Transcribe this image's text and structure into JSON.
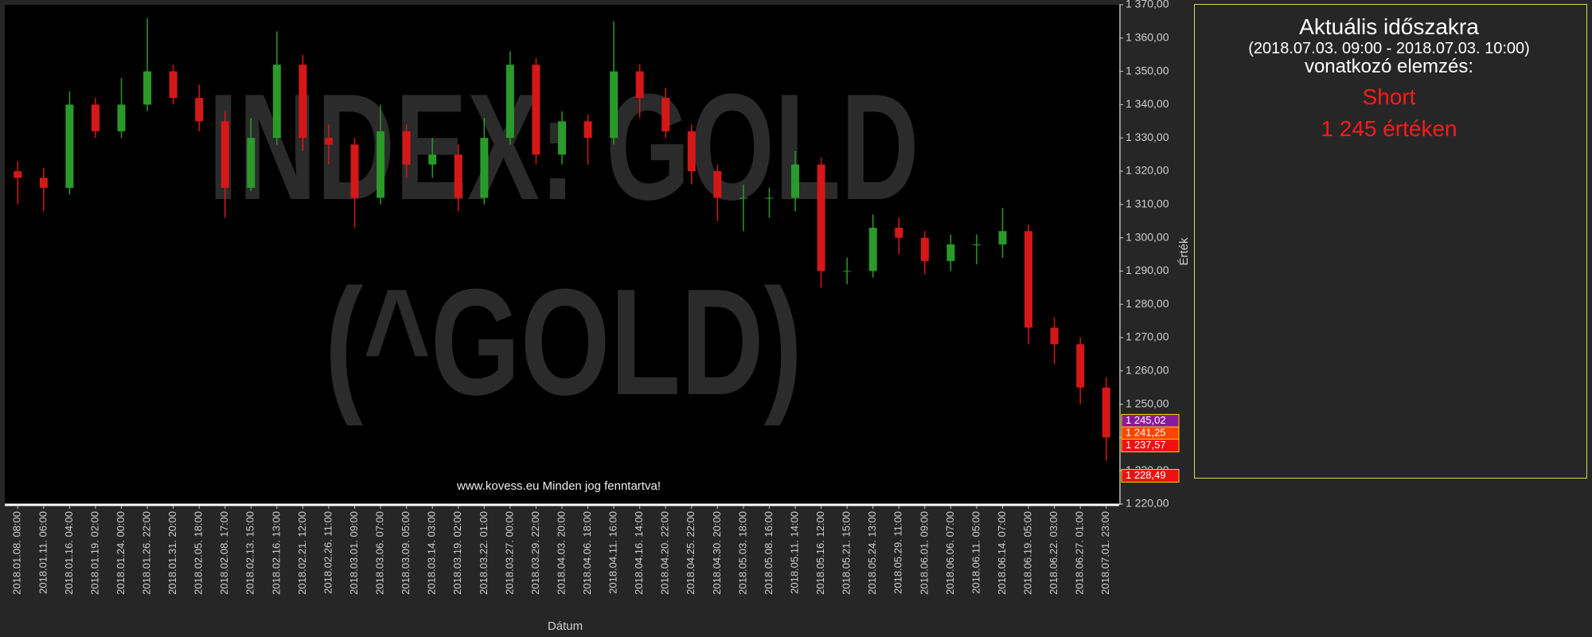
{
  "chart_data": {
    "type": "candlestick",
    "watermark": [
      "INDEX: GOLD",
      "(^GOLD)"
    ],
    "footer": "www.kovess.eu Minden jog fenntartva!",
    "x_label": "Dátum",
    "y_label": "Érték",
    "categories": [
      "2018.01.08. 08:00",
      "2018.01.11. 06:00",
      "2018.01.16. 04:00",
      "2018.01.19. 02:00",
      "2018.01.24. 00:00",
      "2018.01.26. 22:00",
      "2018.01.31. 20:00",
      "2018.02.05. 18:00",
      "2018.02.08. 17:00",
      "2018.02.13. 15:00",
      "2018.02.16. 13:00",
      "2018.02.21. 12:00",
      "2018.02.26. 11:00",
      "2018.03.01. 09:00",
      "2018.03.06. 07:00",
      "2018.03.09. 05:00",
      "2018.03.14. 03:00",
      "2018.03.19. 02:00",
      "2018.03.22. 01:00",
      "2018.03.27. 00:00",
      "2018.03.29. 22:00",
      "2018.04.03. 20:00",
      "2018.04.06. 18:00",
      "2018.04.11. 16:00",
      "2018.04.16. 14:00",
      "2018.04.20. 22:00",
      "2018.04.25. 22:00",
      "2018.04.30. 20:00",
      "2018.05.03. 18:00",
      "2018.05.08. 16:00",
      "2018.05.11. 14:00",
      "2018.05.16. 12:00",
      "2018.05.21. 15:00",
      "2018.05.24. 13:00",
      "2018.05.29. 11:00",
      "2018.06.01. 09:00",
      "2018.06.06. 07:00",
      "2018.06.11. 05:00",
      "2018.06.14. 07:00",
      "2018.06.19. 05:00",
      "2018.06.22. 03:00",
      "2018.06.27. 01:00",
      "2018.07.01. 23:00"
    ],
    "open": [
      1320,
      1318,
      1315,
      1340,
      1332,
      1340,
      1350,
      1342,
      1335,
      1315,
      1330,
      1352,
      1330,
      1328,
      1312,
      1332,
      1322,
      1325,
      1312,
      1330,
      1352,
      1325,
      1335,
      1330,
      1350,
      1342,
      1332,
      1320,
      1312,
      1312,
      1312,
      1322,
      1290,
      1290,
      1303,
      1300,
      1293,
      1298,
      1298,
      1302,
      1273,
      1268,
      1255
    ],
    "high": [
      1323,
      1321,
      1344,
      1342,
      1348,
      1366,
      1352,
      1346,
      1338,
      1336,
      1362,
      1355,
      1334,
      1330,
      1340,
      1334,
      1330,
      1328,
      1336,
      1356,
      1354,
      1338,
      1337,
      1365,
      1352,
      1345,
      1334,
      1322,
      1316,
      1315,
      1326,
      1324,
      1294,
      1307,
      1306,
      1302,
      1301,
      1301,
      1309,
      1304,
      1276,
      1270,
      1258
    ],
    "low": [
      1310,
      1308,
      1313,
      1330,
      1330,
      1338,
      1340,
      1332,
      1306,
      1314,
      1328,
      1326,
      1322,
      1303,
      1310,
      1318,
      1318,
      1308,
      1310,
      1328,
      1322,
      1322,
      1322,
      1328,
      1336,
      1330,
      1316,
      1305,
      1302,
      1306,
      1308,
      1285,
      1286,
      1288,
      1295,
      1289,
      1290,
      1292,
      1294,
      1268,
      1262,
      1250,
      1233
    ],
    "close": [
      1318,
      1315,
      1340,
      1332,
      1340,
      1350,
      1342,
      1335,
      1315,
      1330,
      1352,
      1330,
      1328,
      1312,
      1332,
      1322,
      1325,
      1312,
      1330,
      1352,
      1325,
      1335,
      1330,
      1350,
      1342,
      1332,
      1320,
      1312,
      1312,
      1312,
      1322,
      1290,
      1290,
      1303,
      1300,
      1293,
      1298,
      1298,
      1302,
      1273,
      1268,
      1255,
      1240
    ],
    "up_color": "#2a9a2a",
    "down_color": "#d41818",
    "ylim": [
      1220,
      1370
    ],
    "yticks": [
      {
        "value": 1220,
        "label": "1 220,00"
      },
      {
        "value": 1230,
        "label": "1 230,00"
      },
      {
        "value": 1240,
        "label": "1 240,00"
      },
      {
        "value": 1250,
        "label": "1 250,00"
      },
      {
        "value": 1260,
        "label": "1 260,00"
      },
      {
        "value": 1270,
        "label": "1 270,00"
      },
      {
        "value": 1280,
        "label": "1 280,00"
      },
      {
        "value": 1290,
        "label": "1 290,00"
      },
      {
        "value": 1300,
        "label": "1 300,00"
      },
      {
        "value": 1310,
        "label": "1 310,00"
      },
      {
        "value": 1320,
        "label": "1 320,00"
      },
      {
        "value": 1330,
        "label": "1 330,00"
      },
      {
        "value": 1340,
        "label": "1 340,00"
      },
      {
        "value": 1350,
        "label": "1 350,00"
      },
      {
        "value": 1360,
        "label": "1 360,00"
      },
      {
        "value": 1370,
        "label": "1 370,00"
      }
    ],
    "price_markers": [
      {
        "value": 1245.02,
        "label": "1 245,02",
        "color": "#8a1a9a"
      },
      {
        "value": 1241.25,
        "label": "1 241,25",
        "color": "#ff4400"
      },
      {
        "value": 1237.57,
        "label": "1 237,57",
        "color": "#ee1111"
      },
      {
        "value": 1228.49,
        "label": "1 228,49",
        "color": "#ee1111"
      }
    ]
  },
  "panel": {
    "title": "Aktuális időszakra",
    "period": "(2018.07.03. 09:00 - 2018.07.03. 10:00)",
    "subtitle": "vonatkozó elemzés:",
    "signal": "Short",
    "level": "1 245  értéken"
  }
}
